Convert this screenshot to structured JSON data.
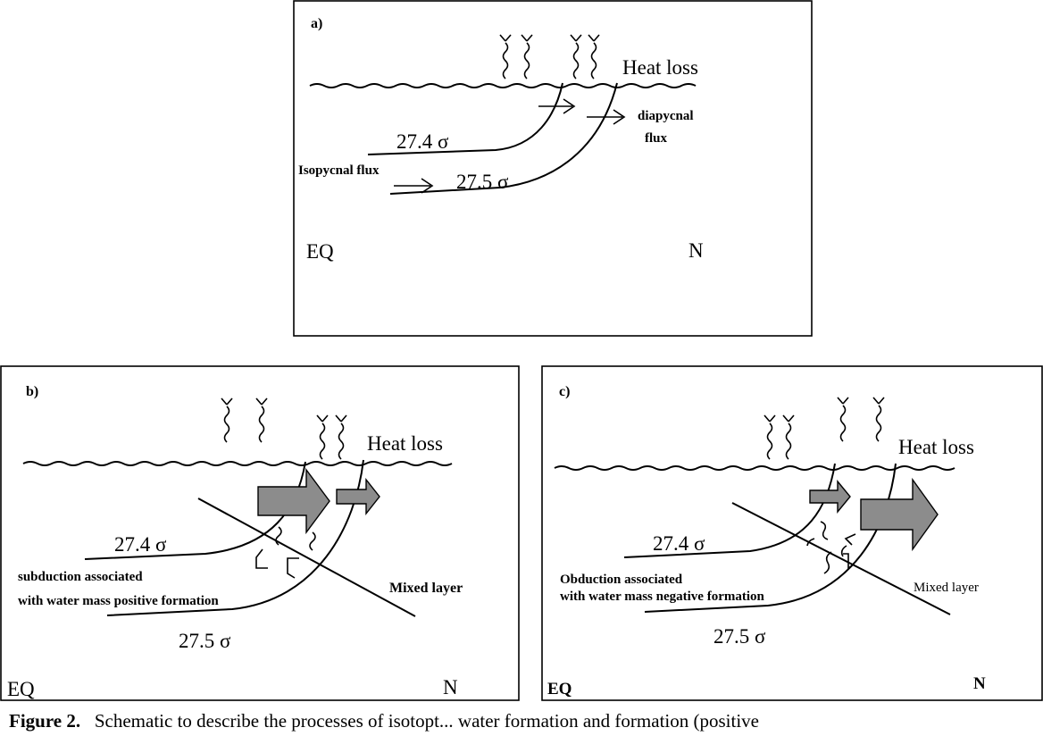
{
  "panel_a": {
    "label": "a)",
    "heat_loss": "Heat loss",
    "isopycnal_upper": "27.4 σ",
    "isopycnal_lower": "27.5 σ",
    "isopycnal_flux": "Isopycnal flux",
    "diapycnal_line1": "diapycnal",
    "diapycnal_line2": "flux",
    "left_label": "EQ",
    "right_label": "N"
  },
  "panel_b": {
    "label": "b)",
    "heat_loss": "Heat loss",
    "isopycnal_upper": "27.4 σ",
    "isopycnal_lower": "27.5 σ",
    "note_line1": "subduction associated",
    "note_line2": "with water mass positive formation",
    "mixed_layer": "Mixed layer",
    "left_label": "EQ",
    "right_label": "N"
  },
  "panel_c": {
    "label": "c)",
    "heat_loss": "Heat loss",
    "isopycnal_upper": "27.4 σ",
    "isopycnal_lower": "27.5 σ",
    "note_line1": "Obduction associated",
    "note_line2": "with water mass negative formation",
    "mixed_layer": "Mixed layer",
    "left_label": "EQ",
    "right_label": "N"
  },
  "caption": {
    "figure_label": "Figure 2.",
    "text": "Schematic to describe the processes of isotopt... water formation and formation (positive"
  },
  "colors": {
    "arrow_fill": "#8c8c8c",
    "line": "#000000"
  }
}
